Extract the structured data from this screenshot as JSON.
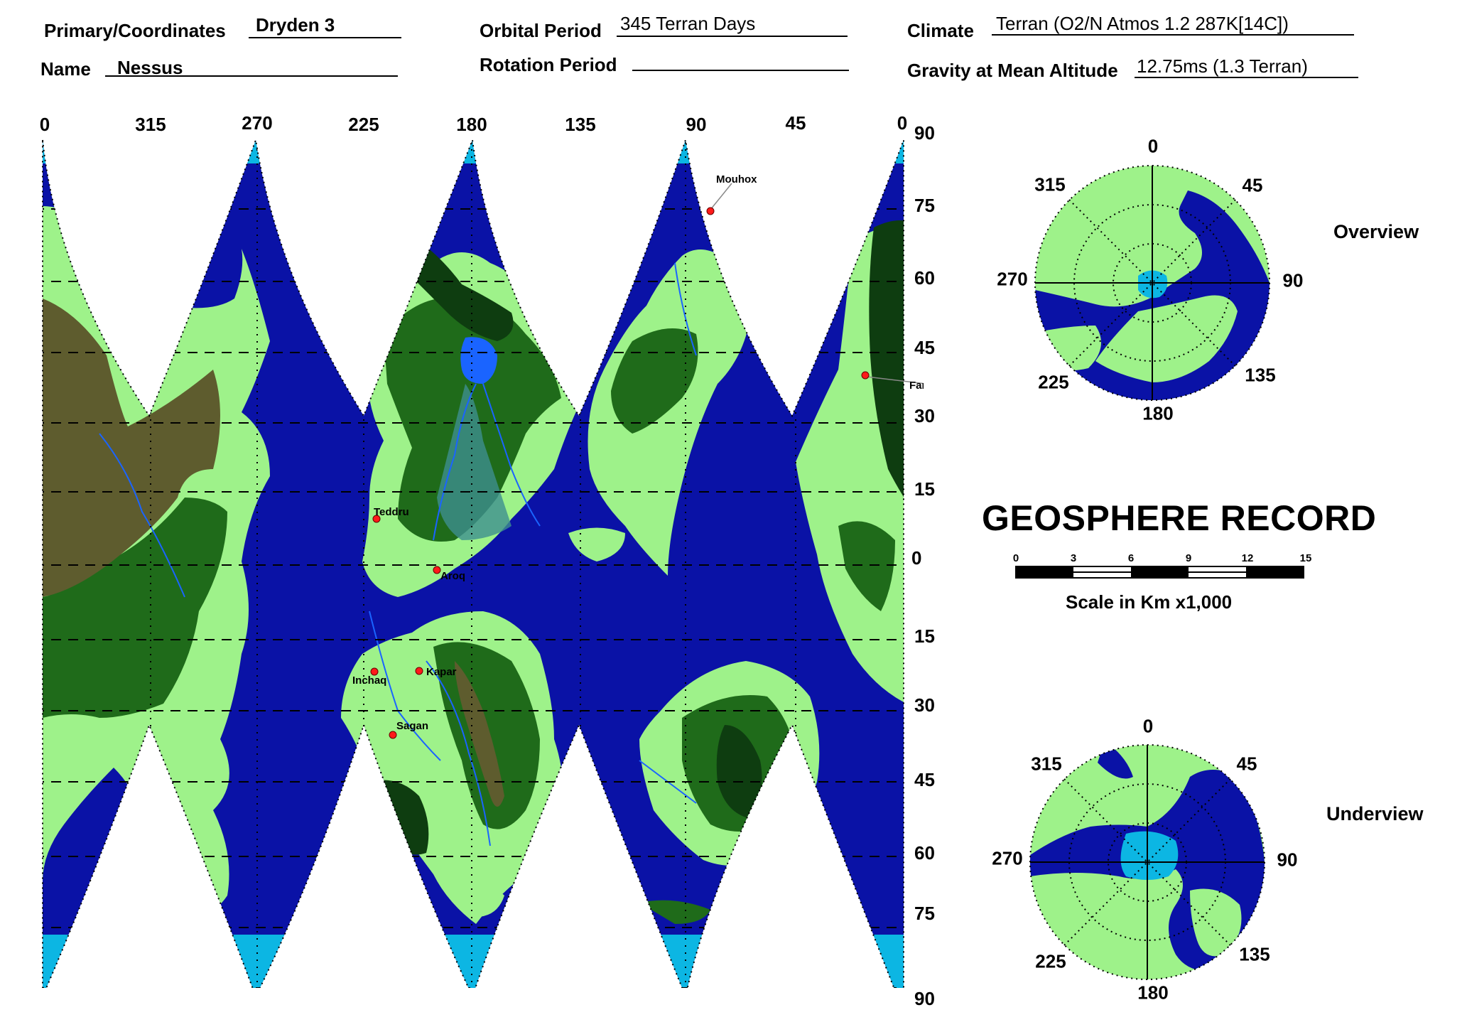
{
  "header": {
    "primary_label": "Primary/Coordinates",
    "primary_value": "Dryden 3",
    "name_label": "Name",
    "name_value": "Nessus",
    "orbital_label": "Orbital Period",
    "orbital_value": "345 Terran Days",
    "rotation_label": "Rotation Period",
    "rotation_value": "",
    "climate_label": "Climate",
    "climate_value": "Terran (O2/N Atmos 1.2 287K[14C])",
    "gravity_label": "Gravity at Mean Altitude",
    "gravity_value": "12.75ms (1.3 Terran)"
  },
  "map": {
    "longitude_ticks": [
      "0",
      "315",
      "270",
      "225",
      "180",
      "135",
      "90",
      "45",
      "0"
    ],
    "latitude_ticks": [
      "90",
      "75",
      "60",
      "45",
      "30",
      "15",
      "0",
      "15",
      "30",
      "45",
      "60",
      "75",
      "90"
    ],
    "cities": [
      {
        "name": "Mouhox"
      },
      {
        "name": "Faraq"
      },
      {
        "name": "Teddru"
      },
      {
        "name": "Aroq"
      },
      {
        "name": "Inchaq"
      },
      {
        "name": "Kapar"
      },
      {
        "name": "Sagan"
      }
    ],
    "colors": {
      "ocean": "#0a12a6",
      "polar_ice": "#0cb6e3",
      "lowland": "#9ef28a",
      "forest": "#1f6b1a",
      "dark_forest": "#0e3d10",
      "highland": "#5e5c2e",
      "river": "#1a64ff",
      "city": "#ff1a1a"
    }
  },
  "overview": {
    "title": "Overview",
    "labels": [
      "0",
      "45",
      "90",
      "135",
      "180",
      "225",
      "270",
      "315"
    ]
  },
  "underview": {
    "title": "Underview",
    "labels": [
      "0",
      "45",
      "90",
      "135",
      "180",
      "225",
      "270",
      "315"
    ]
  },
  "record_title": "GEOSPHERE RECORD",
  "scale": {
    "ticks": [
      "0",
      "3",
      "6",
      "9",
      "12",
      "15"
    ],
    "caption": "Scale in Km x1,000"
  }
}
